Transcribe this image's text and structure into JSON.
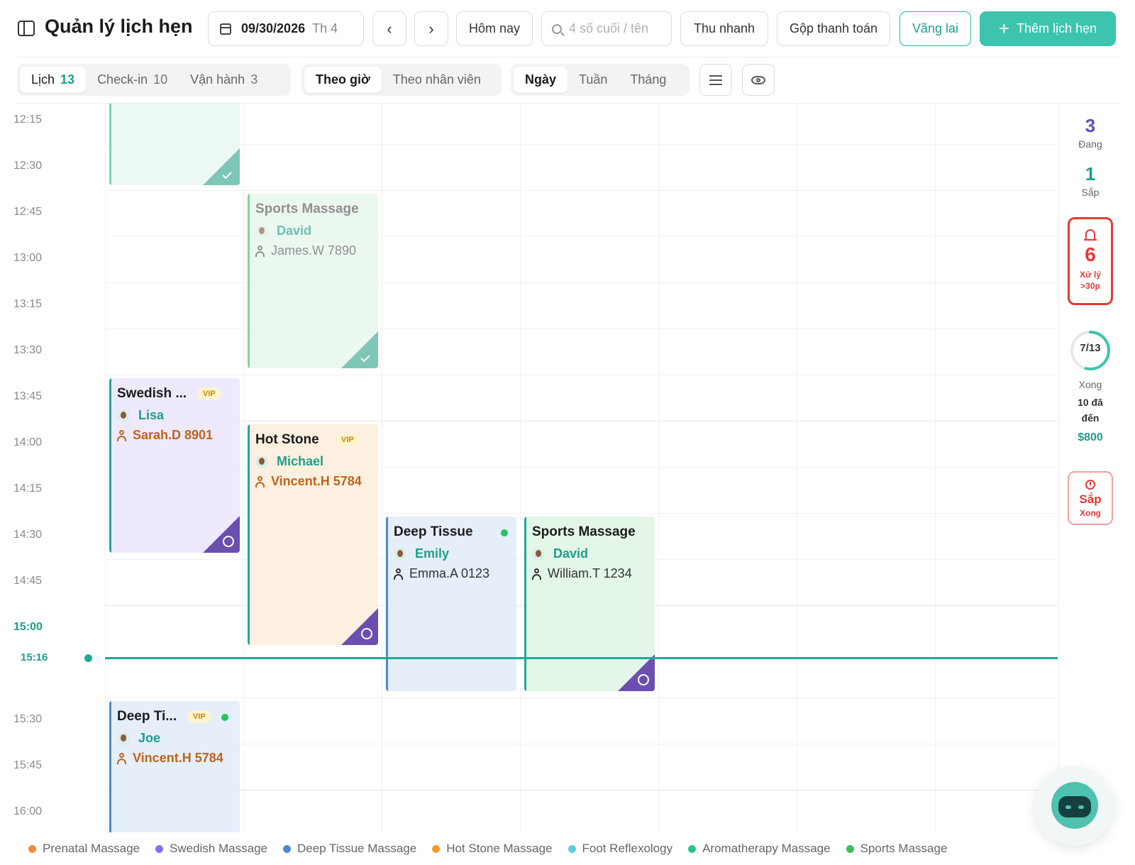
{
  "header": {
    "title": "Quản lý lịch hẹn",
    "date": "09/30/2026",
    "day_of_week": "Th 4",
    "prev_label": "‹",
    "next_label": "›",
    "today_label": "Hôm nay",
    "search_placeholder": "4 số cuối / tên",
    "quick_collect_label": "Thu nhanh",
    "merge_payment_label": "Gộp thanh toán",
    "walk_in_label": "Vãng lai",
    "add_appointment_label": "Thêm lịch hẹn",
    "add_icon": "plus-icon"
  },
  "toolbar": {
    "view_tabs": [
      {
        "label": "Lịch",
        "count": "13",
        "active": true
      },
      {
        "label": "Check-in",
        "count": "10",
        "active": false
      },
      {
        "label": "Vận hành",
        "count": "3",
        "active": false
      }
    ],
    "group_tabs": [
      {
        "label": "Theo giờ",
        "active": true
      },
      {
        "label": "Theo nhân viên",
        "active": false
      }
    ],
    "range_tabs": [
      {
        "label": "Ngày",
        "active": true
      },
      {
        "label": "Tuần",
        "active": false
      },
      {
        "label": "Tháng",
        "active": false
      }
    ],
    "list_icon": "list-icon",
    "eye_icon": "eye-icon"
  },
  "timeline": {
    "slots": [
      "12:15",
      "12:30",
      "12:45",
      "13:00",
      "13:15",
      "13:30",
      "13:45",
      "14:00",
      "14:15",
      "14:30",
      "14:45",
      "15:00",
      "15:30",
      "15:45",
      "16:00"
    ],
    "now_label": "15:16"
  },
  "appointments": [
    {
      "service": "",
      "staff": "",
      "customer": "",
      "status": "done"
    },
    {
      "service": "Sports Massage",
      "staff": "David",
      "customer": "James.W 7890",
      "status": "done"
    },
    {
      "service": "Swedish ...",
      "vip": "VIP",
      "staff": "Lisa",
      "customer": "Sarah.D 8901",
      "status": "pending"
    },
    {
      "service": "Hot Stone",
      "vip": "VIP",
      "staff": "Michael",
      "customer": "Vincent.H 5784",
      "status": "pending"
    },
    {
      "service": "Deep Tissue",
      "staff": "Emily",
      "customer": "Emma.A 0123",
      "status": "in-progress"
    },
    {
      "service": "Sports Massage",
      "staff": "David",
      "customer": "William.T 1234",
      "status": "pending"
    },
    {
      "service": "Deep Ti...",
      "vip": "VIP",
      "staff": "Joe",
      "customer": "Vincent.H 5784",
      "status": "in-progress"
    }
  ],
  "summary": {
    "in_progress": {
      "value": "3",
      "label": "Đang",
      "color": "#5b4fbf"
    },
    "upcoming": {
      "value": "1",
      "label": "Sắp",
      "color": "#1f9e8c"
    },
    "overdue": {
      "value": "6",
      "label_line1": "Xử lý",
      "label_line2": ">30p",
      "color": "#e53935"
    },
    "done": {
      "value": "7/13",
      "fraction": 0.5385,
      "label": "Xong"
    },
    "arrived": {
      "line1": "10 đã",
      "line2": "đến"
    },
    "revenue": "$800",
    "soon_done": {
      "line1": "Sắp",
      "line2": "Xong"
    }
  },
  "legend": [
    {
      "label": "Prenatal Massage",
      "color": "#f08a3c"
    },
    {
      "label": "Swedish Massage",
      "color": "#8b6cf0"
    },
    {
      "label": "Deep Tissue Massage",
      "color": "#4a88d6"
    },
    {
      "label": "Hot Stone Massage",
      "color": "#f59a2c"
    },
    {
      "label": "Foot Reflexology",
      "color": "#5fcde0"
    },
    {
      "label": "Aromatherapy Massage",
      "color": "#2fbf8e"
    },
    {
      "label": "Sports Massage",
      "color": "#3fbf5a"
    }
  ],
  "colors": {
    "accent": "#3cc4ae",
    "now_line": "#1fa89a"
  }
}
